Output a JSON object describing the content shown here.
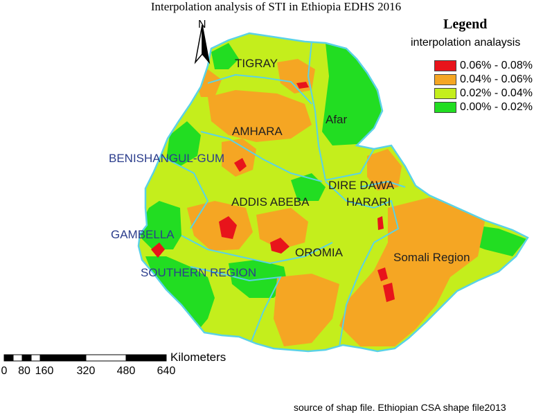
{
  "title": "Interpolation analysis of STI in Ethiopia EDHS 2016",
  "north_arrow": {
    "letter": "N"
  },
  "legend": {
    "title": "Legend",
    "subtitle": "interpolation analaysis",
    "items": [
      {
        "label": "0.06% - 0.08%",
        "color": "#e8141b"
      },
      {
        "label": "0.04% - 0.06%",
        "color": "#f5a623"
      },
      {
        "label": "0.02% - 0.04%",
        "color": "#c4ee1c"
      },
      {
        "label": "0.00% - 0.02%",
        "color": "#22dd22"
      }
    ]
  },
  "regions": {
    "tigray": "TIGRAY",
    "afar": "Afar",
    "amhara": "AMHARA",
    "benishangul": "BENISHANGUL-GUM",
    "dire_dawa": "DIRE DAWA",
    "addis_abeba": "ADDIS ABEBA",
    "harari": "HARARI",
    "gambella": "GAMBELLA",
    "oromia": "OROMIA",
    "somali": "Somali Region",
    "southern": "SOUTHERN REGION"
  },
  "scale_bar": {
    "unit": "Kilometers",
    "ticks": [
      "0",
      "80",
      "160",
      "320",
      "480",
      "640"
    ]
  },
  "source": "source of shap file. Ethiopian CSA shape file2013"
}
